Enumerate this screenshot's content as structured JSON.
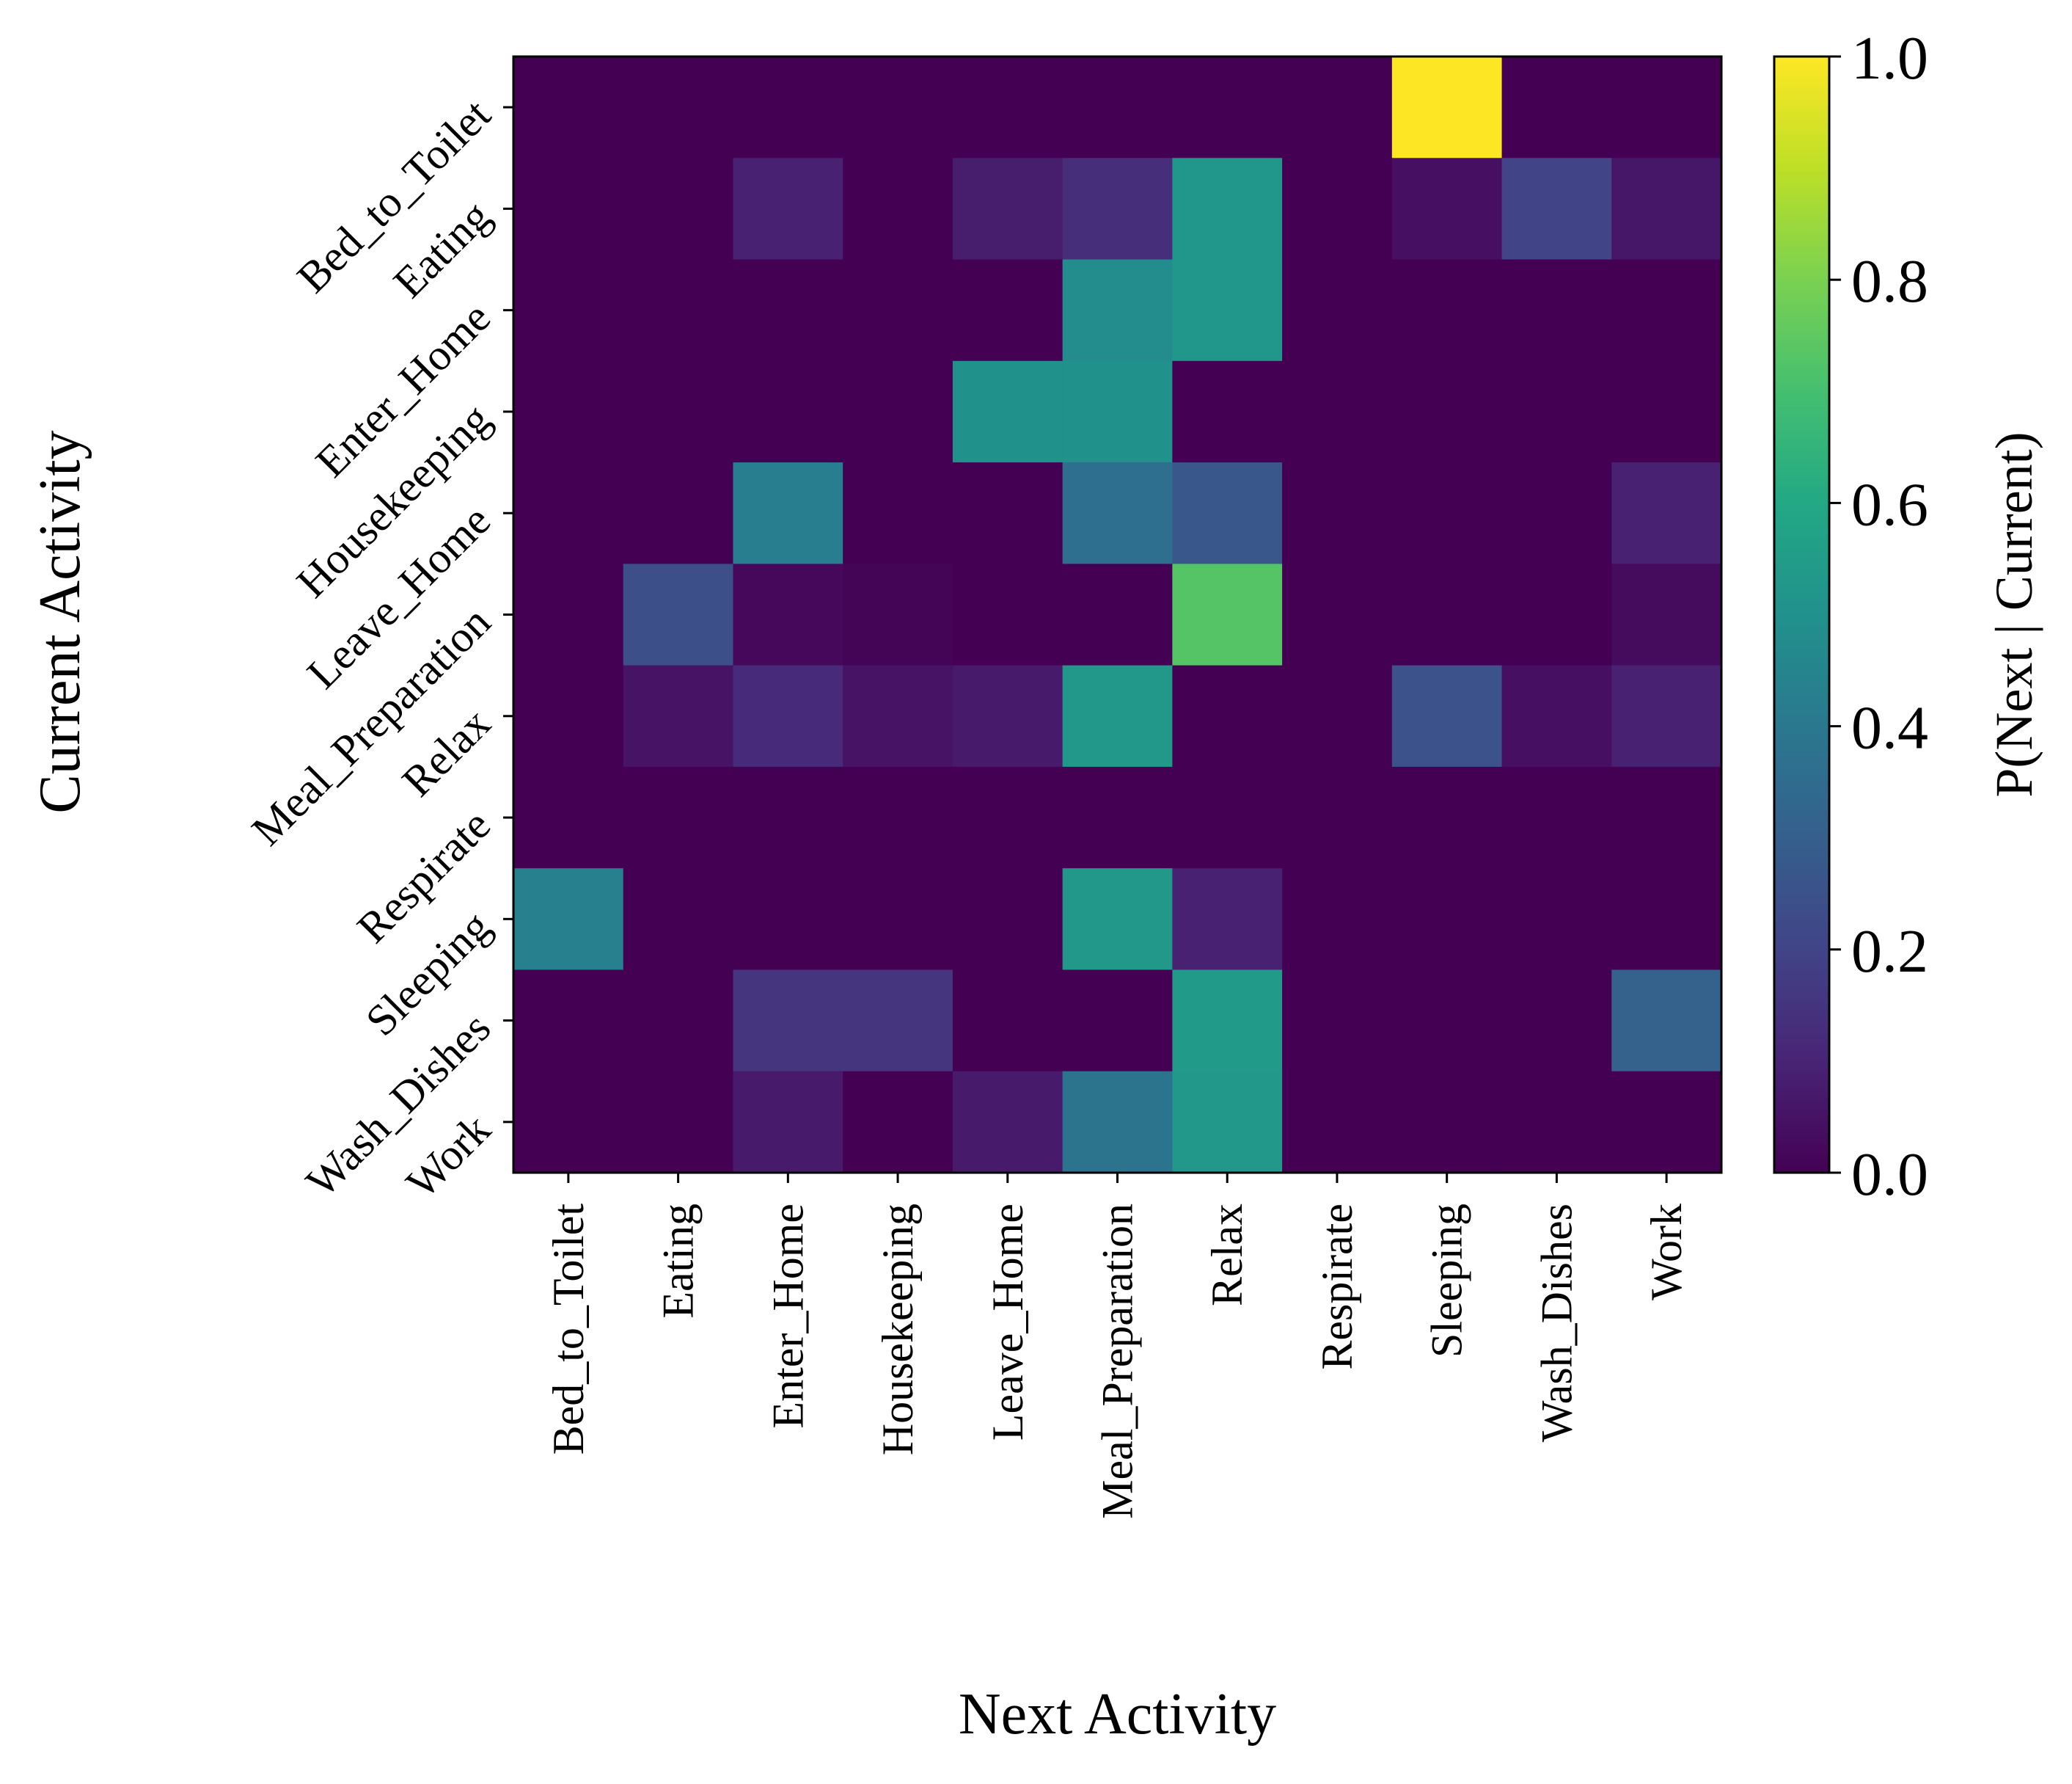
{
  "chart_data": {
    "type": "heatmap",
    "title": "",
    "xlabel": "Next Activity",
    "ylabel": "Current Activity",
    "x_categories": [
      "Bed_to_Toilet",
      "Eating",
      "Enter_Home",
      "Housekeeping",
      "Leave_Home",
      "Meal_Preparation",
      "Relax",
      "Respirate",
      "Sleeping",
      "Wash_Dishes",
      "Work"
    ],
    "y_categories": [
      "Bed_to_Toilet",
      "Eating",
      "Enter_Home",
      "Housekeeping",
      "Leave_Home",
      "Meal_Preparation",
      "Relax",
      "Respirate",
      "Sleeping",
      "Wash_Dishes",
      "Work"
    ],
    "values": [
      [
        0.0,
        0.0,
        0.0,
        0.0,
        0.0,
        0.0,
        0.0,
        0.0,
        1.0,
        0.0,
        0.0
      ],
      [
        0.0,
        0.0,
        0.09,
        0.0,
        0.08,
        0.13,
        0.52,
        0.0,
        0.04,
        0.2,
        0.06
      ],
      [
        0.0,
        0.0,
        0.0,
        0.0,
        0.0,
        0.48,
        0.52,
        0.0,
        0.0,
        0.0,
        0.0
      ],
      [
        0.0,
        0.0,
        0.0,
        0.0,
        0.5,
        0.5,
        0.0,
        0.0,
        0.0,
        0.0,
        0.0
      ],
      [
        0.0,
        0.0,
        0.42,
        0.0,
        0.0,
        0.36,
        0.27,
        0.0,
        0.0,
        0.0,
        0.09
      ],
      [
        0.0,
        0.24,
        0.02,
        0.01,
        0.0,
        0.0,
        0.73,
        0.0,
        0.0,
        0.0,
        0.03
      ],
      [
        0.0,
        0.05,
        0.12,
        0.05,
        0.07,
        0.53,
        0.0,
        0.0,
        0.25,
        0.04,
        0.09
      ],
      [
        0.0,
        0.0,
        0.0,
        0.0,
        0.0,
        0.0,
        0.0,
        0.0,
        0.0,
        0.0,
        0.0
      ],
      [
        0.43,
        0.0,
        0.0,
        0.0,
        0.0,
        0.53,
        0.09,
        0.0,
        0.0,
        0.0,
        0.0
      ],
      [
        0.0,
        0.0,
        0.15,
        0.15,
        0.0,
        0.0,
        0.54,
        0.0,
        0.0,
        0.0,
        0.31
      ],
      [
        0.0,
        0.0,
        0.07,
        0.0,
        0.07,
        0.38,
        0.53,
        0.0,
        0.0,
        0.0,
        0.0
      ]
    ],
    "colormap": "viridis",
    "vmin": 0.0,
    "vmax": 1.0,
    "colorbar": {
      "label": "P(Next | Current)",
      "ticks": [
        0.0,
        0.2,
        0.4,
        0.6,
        0.8,
        1.0
      ],
      "tick_labels": [
        "0.0",
        "0.2",
        "0.4",
        "0.6",
        "0.8",
        "1.0"
      ]
    },
    "x_tick_rotation": "vertical",
    "y_tick_rotation": "45 degrees",
    "grid": false
  }
}
